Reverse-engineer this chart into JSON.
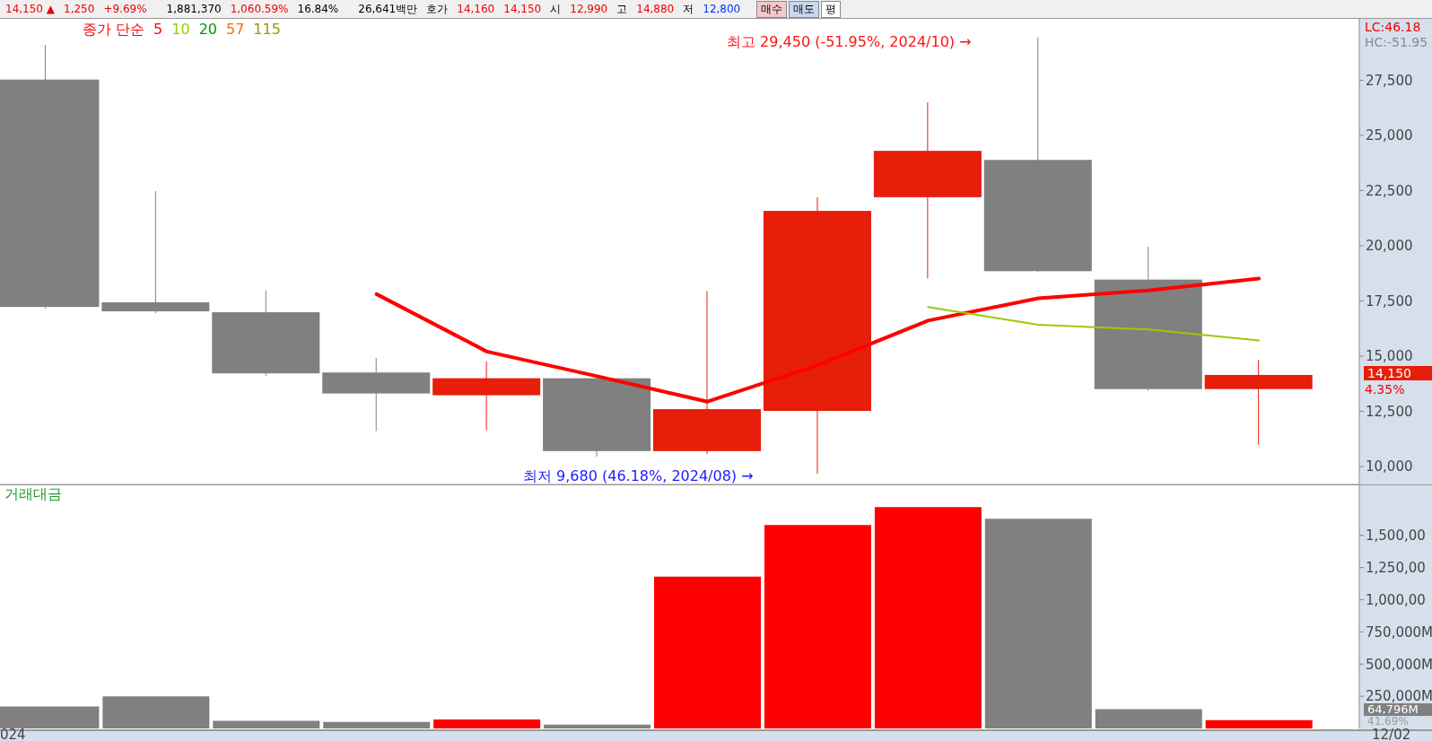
{
  "chart_data": [
    {
      "type": "candlestick",
      "legend_title": "종가 단순",
      "categories": [
        null,
        null,
        null,
        null,
        null,
        null,
        null,
        null,
        null,
        null,
        null,
        null
      ],
      "ohlc": [
        [
          27530,
          29100,
          17150,
          17230
        ],
        [
          17440,
          22480,
          16950,
          17030
        ],
        [
          16990,
          17980,
          14090,
          14220
        ],
        [
          14260,
          14920,
          11610,
          13310
        ],
        [
          13230,
          14760,
          11650,
          14000
        ],
        [
          14000,
          14130,
          10450,
          10700
        ],
        [
          10700,
          17940,
          10580,
          12600
        ],
        [
          12520,
          22200,
          9680,
          21580
        ],
        [
          22200,
          26500,
          18520,
          24300
        ],
        [
          23890,
          29450,
          18810,
          18850
        ],
        [
          18470,
          19960,
          13430,
          13510
        ],
        [
          13510,
          14840,
          10990,
          14150
        ]
      ],
      "colors": [
        "#808080",
        "#808080",
        "#808080",
        "#808080",
        "#e61e0a",
        "#808080",
        "#e61e0a",
        "#e61e0a",
        "#e61e0a",
        "#808080",
        "#808080",
        "#e61e0a"
      ],
      "series": [
        {
          "type": "line",
          "name": "5",
          "color": "#ff0000",
          "values": [
            null,
            null,
            null,
            17810,
            15210,
            14090,
            12940,
            14590,
            16610,
            17620,
            17980,
            18520
          ]
        },
        {
          "type": "line",
          "name": "10",
          "color": "#99cc00",
          "values": [
            null,
            null,
            null,
            null,
            null,
            null,
            null,
            null,
            17230,
            16420,
            16210,
            15710
          ]
        },
        {
          "type": "line",
          "name": "20",
          "color": "#009900",
          "values": [
            null,
            null,
            null,
            null,
            null,
            null,
            null,
            null,
            null,
            null,
            null,
            null
          ]
        },
        {
          "type": "line",
          "name": "57",
          "color": "#ff6600",
          "values": [
            null,
            null,
            null,
            null,
            null,
            null,
            null,
            null,
            null,
            null,
            null,
            null
          ]
        },
        {
          "type": "line",
          "name": "115",
          "color": "#999900",
          "values": [
            null,
            null,
            null,
            null,
            null,
            null,
            null,
            null,
            null,
            null,
            null,
            null
          ]
        }
      ],
      "ylim": [
        9190,
        30280
      ],
      "yticks": [
        {
          "value": 10000,
          "label": "10,000"
        },
        {
          "value": 12500,
          "label": "12,500"
        },
        {
          "value": 15000,
          "label": "15,000"
        },
        {
          "value": 17500,
          "label": "17,500"
        },
        {
          "value": 20000,
          "label": "20,000"
        },
        {
          "value": 22500,
          "label": "22,500"
        },
        {
          "value": 25000,
          "label": "25,000"
        },
        {
          "value": 27500,
          "label": "27,500"
        }
      ],
      "legend": "top left",
      "annotations": [
        "14,150 ▲",
        "1,250",
        "+9.69%",
        "1,881,370",
        "1,060.59%",
        "16.84%",
        "26,641백만",
        "호가",
        "14,160",
        "14,150",
        "시",
        "12,990",
        "고",
        "14,880",
        "저",
        "12,800",
        "매수",
        "매도",
        "평",
        "LC:46.18",
        "HC:-51.95",
        "14,150",
        "4.35%",
        "최저 9,680 (46.18%, 2024/08) →",
        "최고 29,450 (-51.95%, 2024/10) →"
      ]
    },
    {
      "type": "bar",
      "title": "거래대금",
      "categories": [
        null,
        null,
        null,
        null,
        null,
        null,
        null,
        null,
        null,
        null,
        null,
        null
      ],
      "values": [
        170000,
        250000,
        60000,
        50000,
        70000,
        30000,
        1180000,
        1580000,
        1720000,
        1630000,
        150000,
        64796
      ],
      "colors": [
        "#808080",
        "#808080",
        "#808080",
        "#808080",
        "#ff0000",
        "#808080",
        "#ff0000",
        "#ff0000",
        "#ff0000",
        "#808080",
        "#808080",
        "#ff0000"
      ],
      "ylim": [
        0,
        1889000
      ],
      "yticks": [
        {
          "value": 250000,
          "label": "250,000M"
        },
        {
          "value": 500000,
          "label": "500,000M"
        },
        {
          "value": 750000,
          "label": "750,000M"
        },
        {
          "value": 1000000,
          "label": "1,000,00"
        },
        {
          "value": 1250000,
          "label": "1,250,00"
        },
        {
          "value": 1500000,
          "label": "1,500,00"
        }
      ],
      "annotations": [
        "64,796M",
        "41.69%",
        "024",
        "12/02"
      ]
    }
  ]
}
